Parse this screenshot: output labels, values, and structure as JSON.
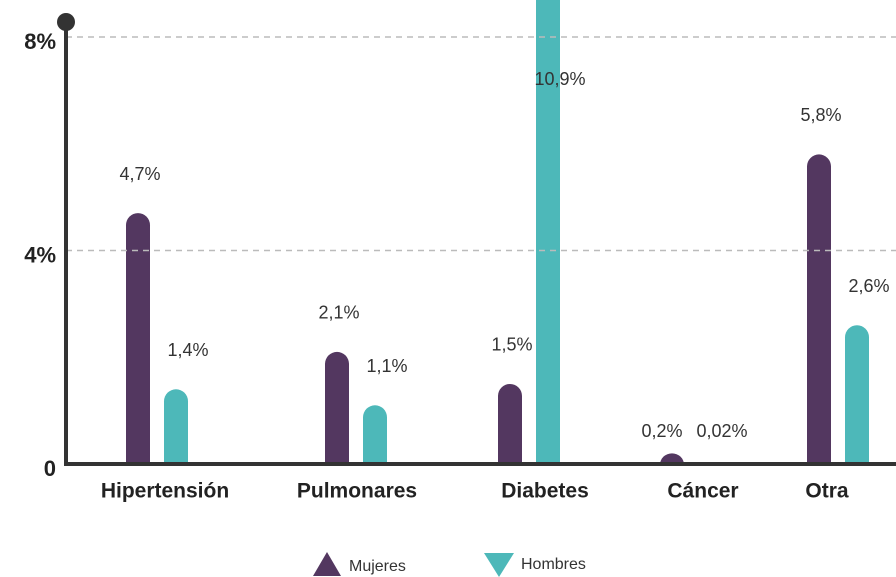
{
  "chart_data": {
    "type": "bar",
    "categories": [
      "Hipertensión",
      "Pulmonares",
      "Diabetes",
      "Cáncer",
      "Otra"
    ],
    "series": [
      {
        "name": "Mujeres",
        "color": "#533760",
        "values": [
          4.7,
          2.1,
          1.5,
          0.2,
          5.8
        ],
        "value_labels": [
          "4,7%",
          "2,1%",
          "1,5%",
          "0,2%",
          "5,8%"
        ]
      },
      {
        "name": "Hombres",
        "color": "#4db8b9",
        "values": [
          1.4,
          1.1,
          10.9,
          0.02,
          2.6
        ],
        "value_labels": [
          "1,4%",
          "1,1%",
          "10,9%",
          "0,02%",
          "2,6%"
        ]
      }
    ],
    "ylim": [
      0,
      8
    ],
    "yticks": [
      0,
      {
        "value": 4,
        "label": "4%"
      },
      {
        "value": 8,
        "label": "8%"
      }
    ],
    "grid": true
  }
}
